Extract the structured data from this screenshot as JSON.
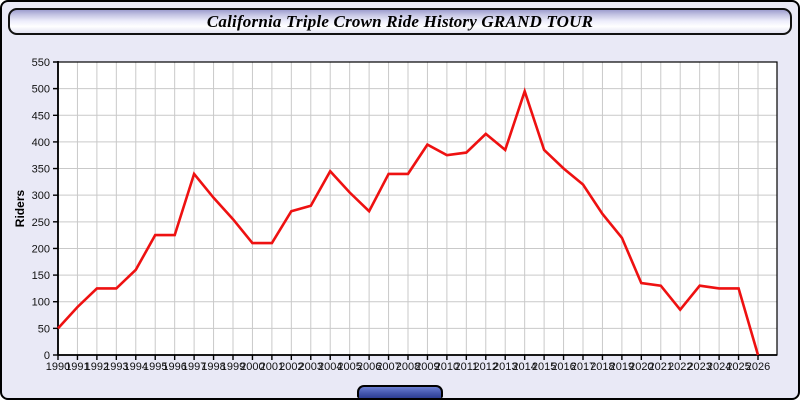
{
  "window": {
    "title": "California Triple Crown Ride History GRAND TOUR"
  },
  "colors": {
    "page_background": "#e9e9f6",
    "plot_background": "#ffffff",
    "grid_line": "#c9c9c9",
    "axis": "#000000",
    "line": "#ee1111",
    "bottom_pill": "#3c4da0"
  },
  "chart_data": {
    "type": "line",
    "title": "California Triple Crown Ride History GRAND TOUR",
    "xlabel": "",
    "ylabel": "Riders",
    "ylim": [
      0,
      550
    ],
    "ytick_step": 50,
    "grid": true,
    "legend": "none",
    "line_color": "#ee1111",
    "x": [
      1990,
      1991,
      1992,
      1993,
      1994,
      1995,
      1996,
      1997,
      1998,
      1999,
      2000,
      2001,
      2002,
      2003,
      2004,
      2005,
      2006,
      2007,
      2008,
      2009,
      2010,
      2011,
      2012,
      2013,
      2014,
      2015,
      2016,
      2017,
      2018,
      2019,
      2020,
      2021,
      2022,
      2023,
      2024,
      2025,
      2026
    ],
    "values": [
      50,
      90,
      125,
      125,
      160,
      225,
      225,
      340,
      295,
      255,
      210,
      210,
      270,
      280,
      345,
      305,
      270,
      340,
      340,
      395,
      375,
      380,
      415,
      385,
      495,
      385,
      350,
      320,
      265,
      220,
      135,
      130,
      85,
      130,
      125,
      125,
      0
    ]
  }
}
